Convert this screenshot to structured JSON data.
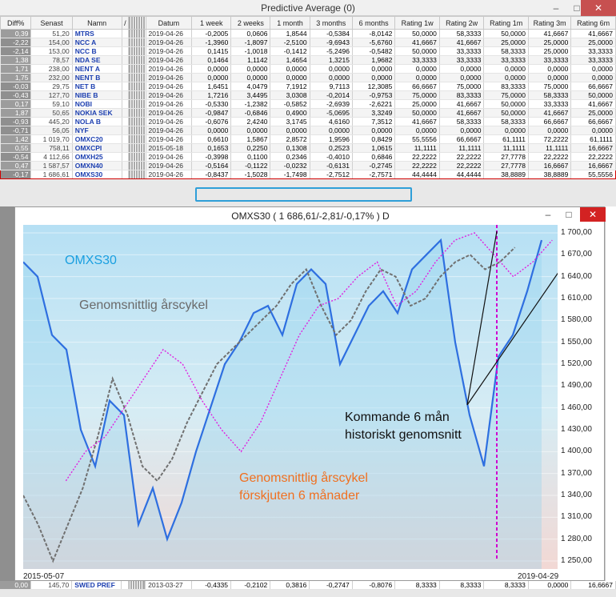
{
  "window": {
    "title": "Predictive Average (0)"
  },
  "table": {
    "columns": [
      "Diff%",
      "Senast",
      "Namn",
      "",
      "Datum",
      "1 week",
      "2 weeks",
      "1 month",
      "3 months",
      "6 months",
      "Rating 1w",
      "Rating 2w",
      "Rating 1m",
      "Rating 3m",
      "Rating 6m"
    ],
    "rows": [
      [
        "0,39",
        "51,20",
        "MTRS",
        "2019-04-26",
        "-0,2005",
        "0,0606",
        "1,8544",
        "-0,5384",
        "-8,0142",
        "50,0000",
        "58,3333",
        "50,0000",
        "41,6667",
        "41,6667"
      ],
      [
        "-2,22",
        "154,00",
        "NCC A",
        "2019-04-26",
        "-1,3960",
        "-1,8097",
        "-2,5100",
        "-9,6943",
        "-5,6760",
        "41,6667",
        "41,6667",
        "25,0000",
        "25,0000",
        "25,0000"
      ],
      [
        "-2,14",
        "153,00",
        "NCC B",
        "2019-04-26",
        "0,1415",
        "-1,0018",
        "-0,1412",
        "-5,2496",
        "-0,5482",
        "50,0000",
        "33,3333",
        "58,3333",
        "25,0000",
        "33,3333"
      ],
      [
        "1,38",
        "78,57",
        "NDA SE",
        "2019-04-26",
        "0,1464",
        "1,1142",
        "1,4654",
        "1,3215",
        "1,9682",
        "33,3333",
        "33,3333",
        "33,3333",
        "33,3333",
        "33,3333"
      ],
      [
        "1,71",
        "238,00",
        "NENT A",
        "2019-04-26",
        "0,0000",
        "0,0000",
        "0,0000",
        "0,0000",
        "0,0000",
        "0,0000",
        "0,0000",
        "0,0000",
        "0,0000",
        "0,0000"
      ],
      [
        "1,75",
        "232,00",
        "NENT B",
        "2019-04-26",
        "0,0000",
        "0,0000",
        "0,0000",
        "0,0000",
        "0,0000",
        "0,0000",
        "0,0000",
        "0,0000",
        "0,0000",
        "0,0000"
      ],
      [
        "-0,03",
        "29,75",
        "NET B",
        "2019-04-26",
        "1,6451",
        "4,0479",
        "7,1912",
        "9,7113",
        "12,3085",
        "66,6667",
        "75,0000",
        "83,3333",
        "75,0000",
        "66,6667"
      ],
      [
        "-0,43",
        "127,70",
        "NIBE B",
        "2019-04-26",
        "1,7216",
        "3,4495",
        "3,0308",
        "-0,2014",
        "-0,9753",
        "75,0000",
        "83,3333",
        "75,0000",
        "58,3333",
        "50,0000"
      ],
      [
        "0,17",
        "59,10",
        "NOBI",
        "2019-04-26",
        "-0,5330",
        "-1,2382",
        "-0,5852",
        "-2,6939",
        "-2,6221",
        "25,0000",
        "41,6667",
        "50,0000",
        "33,3333",
        "41,6667"
      ],
      [
        "1,87",
        "50,65",
        "NOKIA SEK",
        "2019-04-26",
        "-0,9847",
        "-0,6846",
        "0,4900",
        "-5,0695",
        "3,3249",
        "50,0000",
        "41,6667",
        "50,0000",
        "41,6667",
        "25,0000"
      ],
      [
        "-0,93",
        "445,20",
        "NOLA B",
        "2019-04-26",
        "-0,6076",
        "2,4240",
        "3,1745",
        "4,6160",
        "7,3512",
        "41,6667",
        "58,3333",
        "58,3333",
        "66,6667",
        "66,6667"
      ],
      [
        "-0,71",
        "56,05",
        "NYF",
        "2019-04-26",
        "0,0000",
        "0,0000",
        "0,0000",
        "0,0000",
        "0,0000",
        "0,0000",
        "0,0000",
        "0,0000",
        "0,0000",
        "0,0000"
      ],
      [
        "1,42",
        "1 019,70",
        "OMXC20",
        "2019-04-26",
        "0,6610",
        "1,5867",
        "2,8572",
        "1,9596",
        "0,8429",
        "55,5556",
        "66,6667",
        "61,1111",
        "72,2222",
        "61,1111"
      ],
      [
        "0,55",
        "758,11",
        "OMXCPI",
        "2015-05-18",
        "0,1653",
        "0,2250",
        "0,1308",
        "0,2523",
        "1,0615",
        "11,1111",
        "11,1111",
        "11,1111",
        "11,1111",
        "16,6667"
      ],
      [
        "-0,54",
        "4 112,66",
        "OMXH25",
        "2019-04-26",
        "-0,3998",
        "0,1100",
        "0,2346",
        "-0,4010",
        "0,6846",
        "22,2222",
        "22,2222",
        "27,7778",
        "22,2222",
        "22,2222"
      ],
      [
        "0,47",
        "1 587,57",
        "OMXN40",
        "2019-04-26",
        "-0,5164",
        "-0,1122",
        "-0,0232",
        "-0,6131",
        "-0,2745",
        "22,2222",
        "22,2222",
        "27,7778",
        "16,6667",
        "16,6667"
      ],
      [
        "-0,17",
        "1 686,61",
        "OMXS30",
        "2019-04-26",
        "-0,8437",
        "-1,5028",
        "-1,7498",
        "-2,7512",
        "-2,7571",
        "44,4444",
        "44,4444",
        "38,8889",
        "38,8889",
        "55,5556"
      ]
    ],
    "selected_index": 16,
    "bottom_rows": [
      [
        "0,00",
        "145,70",
        "SWED PREF",
        "2013-03-27",
        "-0,4335",
        "-0,2102",
        "0,3816",
        "-0,2747",
        "-0,8076",
        "8,3333",
        "8,3333",
        "8,3333",
        "0,0000",
        "16,6667"
      ]
    ]
  },
  "chart": {
    "title": "OMXS30 ( 1 686,61/-2,81/-0,17% )  D",
    "start_date": "2015-05-07",
    "end_date": "2019-04-29",
    "y_ticks": [
      "1 700,00",
      "1 670,00",
      "1 640,00",
      "1 610,00",
      "1 580,00",
      "1 550,00",
      "1 520,00",
      "1 490,00",
      "1 460,00",
      "1 430,00",
      "1 400,00",
      "1 370,00",
      "1 340,00",
      "1 310,00",
      "1 280,00",
      "1 250,00"
    ],
    "annotations": {
      "series_label": "OMXS30",
      "avg_label": "Genomsnittlig årscykel",
      "shift_label_1": "Genomsnittlig årscykel",
      "shift_label_2": "förskjuten 6 månader",
      "future_label_1": "Kommande 6 mån",
      "future_label_2": "historiskt genomsnitt"
    },
    "colors": {
      "price": "#2e6fe0",
      "avg": "#707070",
      "shifted": "#e020e0",
      "label_blue": "#1a9fe0",
      "label_orange": "#f07020",
      "label_gray": "#6a6a6a"
    }
  },
  "chart_data": {
    "type": "line",
    "title": "OMXS30 ( 1 686,61/-2,81/-0,17% )  D",
    "x_range": [
      "2015-05-07",
      "2019-04-29"
    ],
    "ylim": [
      1250,
      1700
    ],
    "series": [
      {
        "name": "OMXS30",
        "values": [
          1660,
          1640,
          1560,
          1540,
          1430,
          1380,
          1470,
          1450,
          1300,
          1350,
          1280,
          1330,
          1400,
          1460,
          1520,
          1550,
          1590,
          1600,
          1560,
          1630,
          1650,
          1630,
          1520,
          1560,
          1600,
          1620,
          1590,
          1650,
          1670,
          1690,
          1550,
          1450,
          1380,
          1530,
          1560,
          1620,
          1690
        ]
      },
      {
        "name": "Genomsnittlig årscykel",
        "values": [
          1340,
          1300,
          1250,
          1300,
          1350,
          1420,
          1500,
          1450,
          1380,
          1360,
          1390,
          1440,
          1480,
          1520,
          1540,
          1560,
          1580,
          1600,
          1630,
          1650,
          1600,
          1560,
          1580,
          1620,
          1650,
          1640,
          1600,
          1610,
          1640,
          1660,
          1670,
          1650,
          1660,
          1680
        ]
      },
      {
        "name": "Genomsnittlig årscykel förskjuten 6 månader",
        "values": [
          1360,
          1400,
          1420,
          1460,
          1500,
          1540,
          1520,
          1470,
          1430,
          1400,
          1440,
          1500,
          1560,
          1600,
          1610,
          1640,
          1660,
          1600,
          1620,
          1660,
          1690,
          1700,
          1670,
          1640,
          1660,
          1690
        ]
      }
    ]
  }
}
